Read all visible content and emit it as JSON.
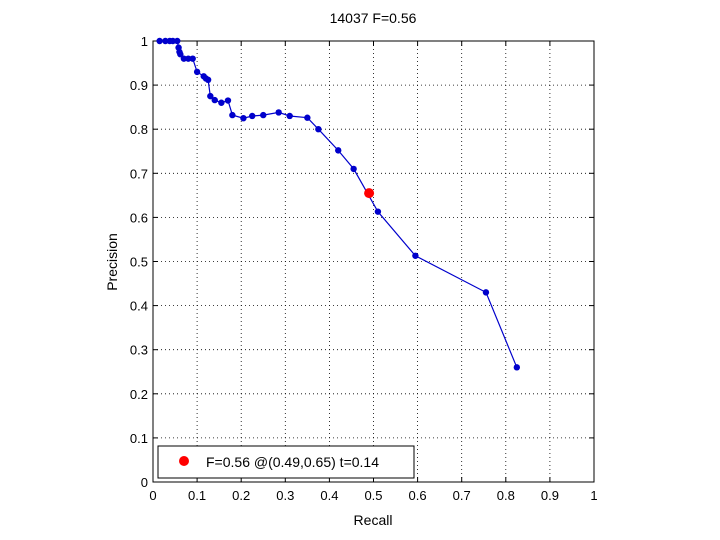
{
  "chart_data": {
    "type": "line",
    "title": "14037 F=0.56",
    "xlabel": "Recall",
    "ylabel": "Precision",
    "xlim": [
      0,
      1
    ],
    "ylim": [
      0,
      1
    ],
    "xticks": [
      "0",
      "0.1",
      "0.2",
      "0.3",
      "0.4",
      "0.5",
      "0.6",
      "0.7",
      "0.8",
      "0.9",
      "1"
    ],
    "yticks": [
      "0",
      "0.1",
      "0.2",
      "0.3",
      "0.4",
      "0.5",
      "0.6",
      "0.7",
      "0.8",
      "0.9",
      "1"
    ],
    "grid": true,
    "grid_style": "dotted",
    "series": [
      {
        "color": "#0000cc",
        "x": [
          0.015,
          0.028,
          0.038,
          0.045,
          0.055,
          0.058,
          0.06,
          0.062,
          0.07,
          0.08,
          0.09,
          0.1,
          0.115,
          0.12,
          0.125,
          0.13,
          0.14,
          0.155,
          0.17,
          0.18,
          0.205,
          0.225,
          0.25,
          0.285,
          0.31,
          0.35,
          0.375,
          0.42,
          0.455,
          0.51,
          0.595,
          0.755,
          0.825
        ],
        "y": [
          1.0,
          1.0,
          1.0,
          1.0,
          1.0,
          0.985,
          0.975,
          0.97,
          0.96,
          0.96,
          0.96,
          0.93,
          0.92,
          0.915,
          0.912,
          0.875,
          0.866,
          0.86,
          0.865,
          0.832,
          0.825,
          0.83,
          0.832,
          0.838,
          0.83,
          0.826,
          0.8,
          0.752,
          0.71,
          0.613,
          0.513,
          0.43,
          0.26
        ]
      }
    ],
    "highlight": {
      "x": 0.49,
      "y": 0.655,
      "color": "#ff0000",
      "label": "F=0.56 @(0.49,0.65) t=0.14"
    },
    "legend": {
      "placement": "bottom-left"
    }
  }
}
